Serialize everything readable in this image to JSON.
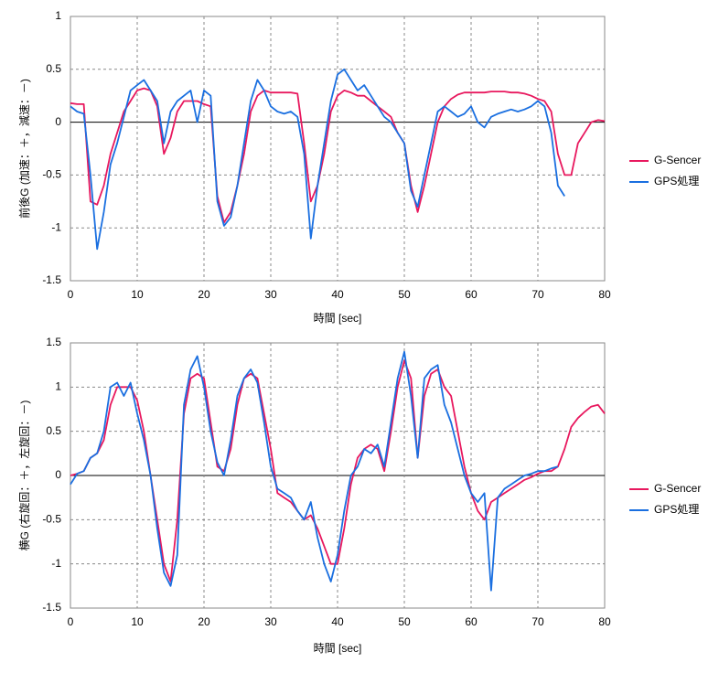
{
  "chart_data": [
    {
      "type": "line",
      "xlabel": "時間 [sec]",
      "ylabel": "前後G (加速：＋，減速：－)",
      "xlim": [
        0,
        80
      ],
      "xticks": [
        0,
        10,
        20,
        30,
        40,
        50,
        60,
        70,
        80
      ],
      "ylim": [
        -1.5,
        1
      ],
      "yticks": [
        1,
        0.5,
        0,
        -0.5,
        -1,
        -1.5
      ],
      "grid": true,
      "legend": "right",
      "x": [
        0,
        1,
        2,
        3,
        4,
        5,
        6,
        7,
        8,
        9,
        10,
        11,
        12,
        13,
        14,
        15,
        16,
        17,
        18,
        19,
        20,
        21,
        22,
        23,
        24,
        25,
        26,
        27,
        28,
        29,
        30,
        31,
        32,
        33,
        34,
        35,
        36,
        37,
        38,
        39,
        40,
        41,
        42,
        43,
        44,
        45,
        46,
        47,
        48,
        49,
        50,
        51,
        52,
        53,
        54,
        55,
        56,
        57,
        58,
        59,
        60,
        61,
        62,
        63,
        64,
        65,
        66,
        67,
        68,
        69,
        70,
        71,
        72,
        73,
        74,
        75,
        76,
        77,
        78,
        79,
        80
      ],
      "series": [
        {
          "name": "G-Sencer",
          "color": "#e8185e",
          "values": [
            0.18,
            0.17,
            0.17,
            -0.75,
            -0.78,
            -0.6,
            -0.3,
            -0.1,
            0.1,
            0.2,
            0.3,
            0.32,
            0.3,
            0.15,
            -0.3,
            -0.15,
            0.1,
            0.2,
            0.2,
            0.2,
            0.17,
            0.15,
            -0.7,
            -0.95,
            -0.85,
            -0.6,
            -0.3,
            0.1,
            0.25,
            0.3,
            0.28,
            0.28,
            0.28,
            0.28,
            0.27,
            -0.2,
            -0.75,
            -0.6,
            -0.3,
            0.1,
            0.25,
            0.3,
            0.28,
            0.25,
            0.25,
            0.2,
            0.15,
            0.1,
            0.05,
            -0.1,
            -0.2,
            -0.6,
            -0.85,
            -0.6,
            -0.3,
            0,
            0.15,
            0.22,
            0.26,
            0.28,
            0.28,
            0.28,
            0.28,
            0.29,
            0.29,
            0.29,
            0.28,
            0.28,
            0.27,
            0.25,
            0.22,
            0.2,
            0.1,
            -0.3,
            -0.5,
            -0.5,
            -0.2,
            -0.1,
            0,
            0.02,
            0.01
          ]
        },
        {
          "name": "GPS処理",
          "color": "#1a6fe0",
          "values": [
            0.15,
            0.1,
            0.08,
            -0.5,
            -1.2,
            -0.85,
            -0.4,
            -0.2,
            0.05,
            0.3,
            0.35,
            0.4,
            0.3,
            0.2,
            -0.2,
            0.1,
            0.2,
            0.25,
            0.3,
            0,
            0.3,
            0.25,
            -0.75,
            -0.98,
            -0.9,
            -0.6,
            -0.2,
            0.2,
            0.4,
            0.3,
            0.15,
            0.1,
            0.08,
            0.1,
            0.05,
            -0.3,
            -1.1,
            -0.6,
            -0.2,
            0.2,
            0.45,
            0.5,
            0.4,
            0.3,
            0.35,
            0.25,
            0.15,
            0.05,
            0,
            -0.1,
            -0.2,
            -0.65,
            -0.8,
            -0.5,
            -0.2,
            0.1,
            0.15,
            0.1,
            0.05,
            0.08,
            0.15,
            0,
            -0.05,
            0.05,
            0.08,
            0.1,
            0.12,
            0.1,
            0.12,
            0.15,
            0.2,
            0.15,
            -0.1,
            -0.6,
            -0.7,
            null,
            null,
            null,
            null,
            null,
            null
          ]
        }
      ]
    },
    {
      "type": "line",
      "xlabel": "時間 [sec]",
      "ylabel": "横G (右旋回：＋，左旋回：－)",
      "xlim": [
        0,
        80
      ],
      "xticks": [
        0,
        10,
        20,
        30,
        40,
        50,
        60,
        70,
        80
      ],
      "ylim": [
        -1.5,
        1.5
      ],
      "yticks": [
        1.5,
        1,
        0.5,
        0,
        -0.5,
        -1,
        -1.5
      ],
      "grid": true,
      "legend": "right",
      "x": [
        0,
        1,
        2,
        3,
        4,
        5,
        6,
        7,
        8,
        9,
        10,
        11,
        12,
        13,
        14,
        15,
        16,
        17,
        18,
        19,
        20,
        21,
        22,
        23,
        24,
        25,
        26,
        27,
        28,
        29,
        30,
        31,
        32,
        33,
        34,
        35,
        36,
        37,
        38,
        39,
        40,
        41,
        42,
        43,
        44,
        45,
        46,
        47,
        48,
        49,
        50,
        51,
        52,
        53,
        54,
        55,
        56,
        57,
        58,
        59,
        60,
        61,
        62,
        63,
        64,
        65,
        66,
        67,
        68,
        69,
        70,
        71,
        72,
        73,
        74,
        75,
        76,
        77,
        78,
        79,
        80
      ],
      "series": [
        {
          "name": "G-Sencer",
          "color": "#e8185e",
          "values": [
            0,
            0.02,
            0.05,
            0.2,
            0.25,
            0.4,
            0.8,
            1.0,
            1.0,
            1.0,
            0.85,
            0.5,
            0,
            -0.5,
            -1.0,
            -1.2,
            -0.5,
            0.7,
            1.1,
            1.15,
            1.1,
            0.6,
            0.1,
            0.05,
            0.3,
            0.8,
            1.1,
            1.15,
            1.1,
            0.7,
            0.3,
            -0.2,
            -0.25,
            -0.3,
            -0.4,
            -0.5,
            -0.45,
            -0.6,
            -0.8,
            -1.0,
            -1.0,
            -0.6,
            -0.1,
            0.2,
            0.3,
            0.35,
            0.3,
            0.05,
            0.5,
            1.0,
            1.3,
            1.1,
            0.2,
            0.9,
            1.15,
            1.2,
            1.0,
            0.9,
            0.5,
            0.1,
            -0.2,
            -0.4,
            -0.5,
            -0.3,
            -0.25,
            -0.2,
            -0.15,
            -0.1,
            -0.05,
            -0.02,
            0.02,
            0.05,
            0.05,
            0.1,
            0.3,
            0.55,
            0.65,
            0.72,
            0.78,
            0.8,
            0.7
          ]
        },
        {
          "name": "GPS処理",
          "color": "#1a6fe0",
          "values": [
            -0.1,
            0.02,
            0.05,
            0.2,
            0.25,
            0.5,
            1.0,
            1.05,
            0.9,
            1.05,
            0.7,
            0.4,
            0,
            -0.6,
            -1.1,
            -1.25,
            -0.9,
            0.8,
            1.2,
            1.35,
            1.0,
            0.5,
            0.15,
            0,
            0.4,
            0.9,
            1.1,
            1.2,
            1.05,
            0.6,
            0.1,
            -0.15,
            -0.2,
            -0.25,
            -0.4,
            -0.5,
            -0.3,
            -0.7,
            -1.0,
            -1.2,
            -0.9,
            -0.4,
            0,
            0.1,
            0.3,
            0.25,
            0.35,
            0.1,
            0.6,
            1.1,
            1.4,
            0.9,
            0.2,
            1.1,
            1.2,
            1.25,
            0.8,
            0.6,
            0.3,
            0,
            -0.2,
            -0.3,
            -0.2,
            -1.3,
            -0.25,
            -0.15,
            -0.1,
            -0.05,
            0,
            0.02,
            0.05,
            0.05,
            0.08,
            0.1,
            null,
            null,
            null,
            null,
            null,
            null,
            null
          ]
        }
      ]
    }
  ]
}
